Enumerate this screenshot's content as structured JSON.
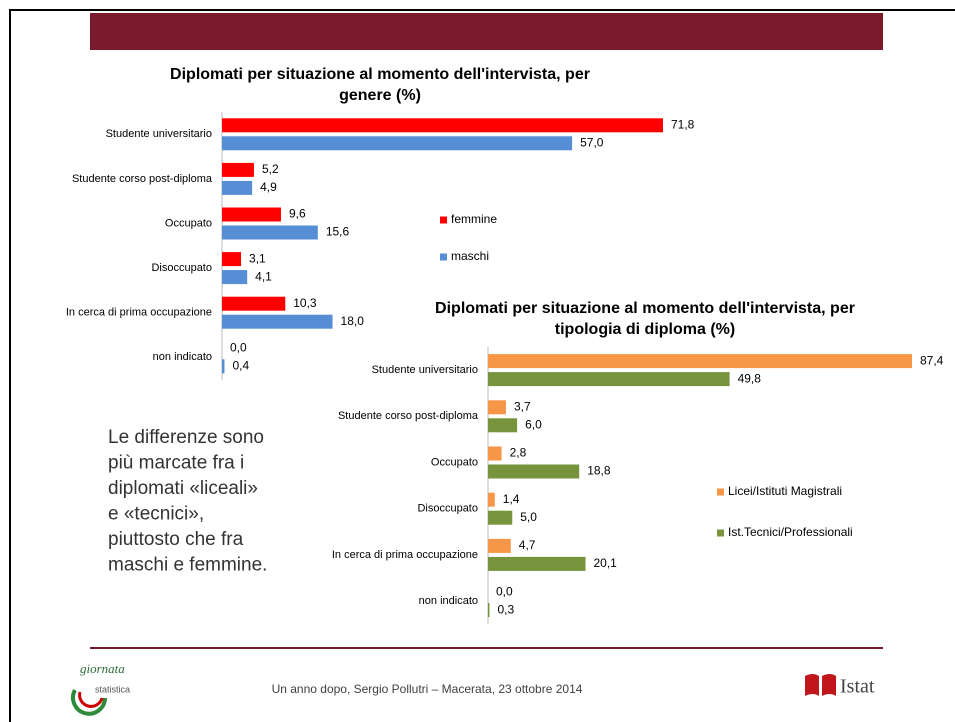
{
  "chart_data": [
    {
      "type": "bar",
      "orientation": "horizontal",
      "title": [
        "Diplomati per situazione al momento dell'intervista, per",
        "genere (%)"
      ],
      "categories": [
        "Studente universitario",
        "Studente corso post-diploma",
        "Occupato",
        "Disoccupato",
        "In cerca di prima occupazione",
        "non indicato"
      ],
      "series": [
        {
          "name": "femmine",
          "color": "#ff0000",
          "values": [
            71.8,
            5.2,
            9.6,
            3.1,
            10.3,
            0.0
          ],
          "value_labels": [
            "71,8",
            "5,2",
            "9,6",
            "3,1",
            "10,3",
            "0,0"
          ]
        },
        {
          "name": "maschi",
          "color": "#558ed5",
          "values": [
            57.0,
            4.9,
            15.6,
            4.1,
            18.0,
            0.4
          ],
          "value_labels": [
            "57,0",
            "4,9",
            "15,6",
            "4,1",
            "18,0",
            "0,4"
          ]
        }
      ]
    },
    {
      "type": "bar",
      "orientation": "horizontal",
      "title": [
        "Diplomati per situazione al momento dell'intervista, per",
        "tipologia di diploma (%)"
      ],
      "categories": [
        "Studente universitario",
        "Studente corso post-diploma",
        "Occupato",
        "Disoccupato",
        "In cerca di prima occupazione",
        "non indicato"
      ],
      "series": [
        {
          "name": "Licei/Istituti Magistrali",
          "color": "#f79646",
          "values": [
            87.4,
            3.7,
            2.8,
            1.4,
            4.7,
            0.0
          ],
          "value_labels": [
            "87,4",
            "3,7",
            "2,8",
            "1,4",
            "4,7",
            "0,0"
          ]
        },
        {
          "name": "Ist.Tecnici/Professionali",
          "color": "#77933c",
          "values": [
            49.8,
            6.0,
            18.8,
            5.0,
            20.1,
            0.3
          ],
          "value_labels": [
            "49,8",
            "6,0",
            "18,8",
            "5,0",
            "20,1",
            "0,3"
          ]
        }
      ]
    }
  ],
  "note": [
    "Le differenze sono",
    "più marcate fra i",
    "diplomati «liceali»",
    "e «tecnici»,",
    "piuttosto che fra",
    "maschi e femmine."
  ],
  "footer": "Un anno dopo, Sergio Pollutri – Macerata, 23 ottobre 2014",
  "logos": {
    "left": [
      "giornata",
      "statistica"
    ],
    "right": "Istat"
  }
}
